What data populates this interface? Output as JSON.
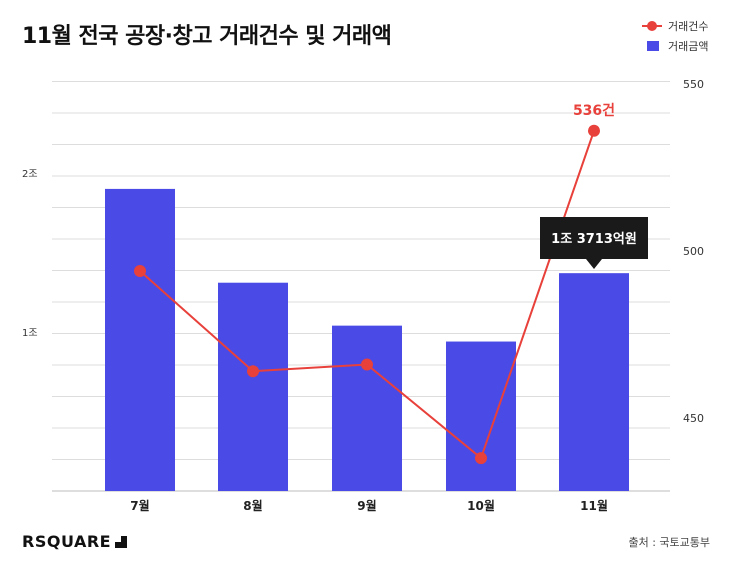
{
  "header": {
    "title": "11월 전국 공장·창고 거래건수 및 거래액"
  },
  "legend": {
    "line_label": "거래건수",
    "bar_label": "거래금액"
  },
  "footer": {
    "brand": "RSQUARE",
    "source": "출처 : 국토교통부"
  },
  "colors": {
    "bar": "#4a4ae6",
    "line": "#e8403a",
    "grid": "#dddddd",
    "tooltip_bg": "#1a1a1a"
  },
  "chart_data": {
    "type": "bar",
    "categories": [
      "7월",
      "8월",
      "9월",
      "10월",
      "11월"
    ],
    "series": [
      {
        "name": "거래금액",
        "type": "bar",
        "axis": "left",
        "values": [
          1.9,
          1.31,
          1.04,
          0.94,
          1.37
        ]
      },
      {
        "name": "거래건수",
        "type": "line",
        "axis": "right",
        "values": [
          494,
          464,
          466,
          438,
          536
        ]
      }
    ],
    "left_axis": {
      "ticks": [
        "1조",
        "2조"
      ],
      "tick_values": [
        1,
        2
      ],
      "ylim": [
        0,
        2.6
      ]
    },
    "right_axis": {
      "ticks": [
        "450",
        "500",
        "550"
      ],
      "tick_values": [
        450,
        500,
        550
      ],
      "ylim": [
        420,
        555
      ]
    },
    "annotations": {
      "line_last_label": "536건",
      "bar_last_tooltip": "1조 3713억원"
    },
    "grid": true,
    "legend_position": "top-right"
  }
}
